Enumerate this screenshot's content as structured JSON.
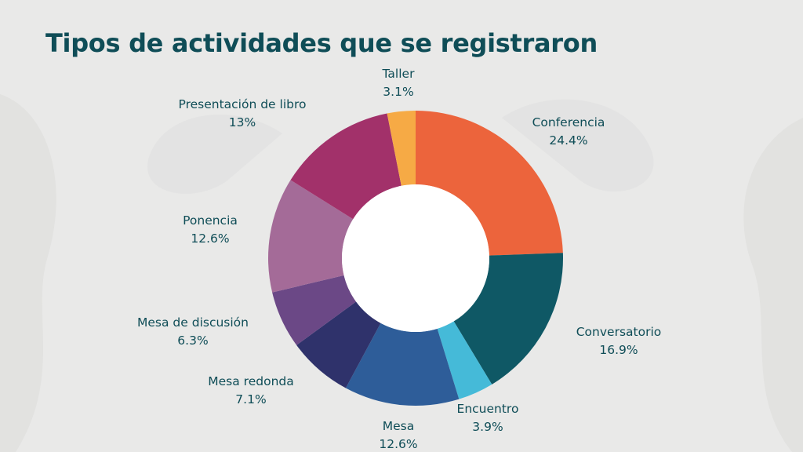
{
  "title": "Tipos de actividades que se registraron",
  "chart_data": {
    "type": "pie",
    "donut": true,
    "slices": [
      {
        "label": "Conferencia",
        "value": 24.4,
        "display": "24.4%",
        "color": "#ec643c"
      },
      {
        "label": "Conversatorio",
        "value": 16.9,
        "display": "16.9%",
        "color": "#0f5865"
      },
      {
        "label": "Encuentro",
        "value": 3.9,
        "display": "3.9%",
        "color": "#45bad8"
      },
      {
        "label": "Mesa",
        "value": 12.6,
        "display": "12.6%",
        "color": "#2e5d99"
      },
      {
        "label": "Mesa redonda",
        "value": 7.1,
        "display": "7.1%",
        "color": "#2f326b"
      },
      {
        "label": "Mesa de discusión",
        "value": 6.3,
        "display": "6.3%",
        "color": "#6b4886"
      },
      {
        "label": "Ponencia",
        "value": 12.6,
        "display": "12.6%",
        "color": "#a46b98"
      },
      {
        "label": "Presentación de libro",
        "value": 13,
        "display": "13%",
        "color": "#a2316a"
      },
      {
        "label": "Taller",
        "value": 3.1,
        "display": "3.1%",
        "color": "#f6aa45"
      }
    ]
  }
}
